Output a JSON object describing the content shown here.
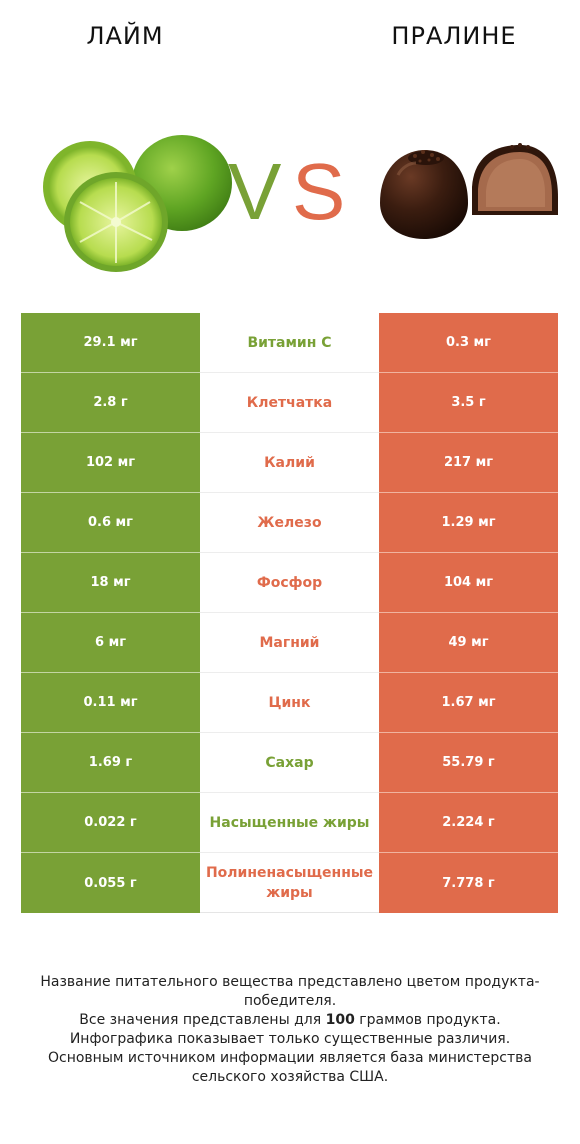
{
  "header": {
    "left_title": "ЛАЙМ",
    "right_title": "ПРАЛИНЕ",
    "vs_left": "V",
    "vs_right": "S"
  },
  "colors": {
    "left": "#79a136",
    "right": "#e06b4b"
  },
  "rows": [
    {
      "left": "29.1 мг",
      "label": "Витамин C",
      "right": "0.3 мг",
      "winner": "left"
    },
    {
      "left": "2.8 г",
      "label": "Клетчатка",
      "right": "3.5 г",
      "winner": "right"
    },
    {
      "left": "102 мг",
      "label": "Калий",
      "right": "217 мг",
      "winner": "right"
    },
    {
      "left": "0.6 мг",
      "label": "Железо",
      "right": "1.29 мг",
      "winner": "right"
    },
    {
      "left": "18 мг",
      "label": "Фосфор",
      "right": "104 мг",
      "winner": "right"
    },
    {
      "left": "6 мг",
      "label": "Магний",
      "right": "49 мг",
      "winner": "right"
    },
    {
      "left": "0.11 мг",
      "label": "Цинк",
      "right": "1.67 мг",
      "winner": "right"
    },
    {
      "left": "1.69 г",
      "label": "Сахар",
      "right": "55.79 г",
      "winner": "left"
    },
    {
      "left": "0.022 г",
      "label": "Насыщенные жиры",
      "right": "2.224 г",
      "winner": "left"
    },
    {
      "left": "0.055 г",
      "label": "Полиненасыщенные жиры",
      "right": "7.778 г",
      "winner": "right"
    }
  ],
  "footer": {
    "line1": "Название питательного вещества представлено цветом продукта-победителя.",
    "line2_prefix": "Все значения представлены для ",
    "line2_bold": "100",
    "line2_suffix": " граммов продукта.",
    "line3": "Инфографика показывает только существенные различия.",
    "line4": "Основным источником информации является база министерства сельского хозяйства США."
  }
}
